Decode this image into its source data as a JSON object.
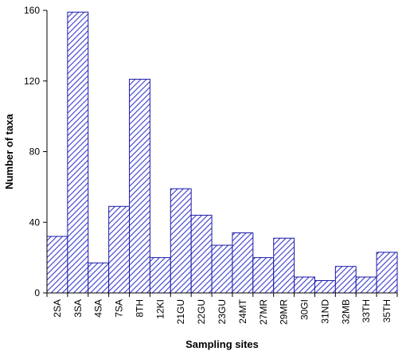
{
  "chart_data": {
    "type": "bar",
    "title": "",
    "xlabel": "Sampling sites",
    "ylabel": "Number of taxa",
    "ylim": [
      0,
      160
    ],
    "yticks": [
      0,
      40,
      80,
      120,
      160
    ],
    "grid": false,
    "legend": "none",
    "bar_fill": "hatched-diagonal",
    "colors": {
      "bar_stroke": "#1a1aa8",
      "bar_hatch": "#3a3ad0",
      "axis": "#000000"
    },
    "categories": [
      "2SA",
      "3SA",
      "4SA",
      "7SA",
      "8TH",
      "12KI",
      "21GU",
      "22GU",
      "23GU",
      "24MT",
      "27MR",
      "29MR",
      "30GI",
      "31ND",
      "32MB",
      "33TH",
      "35TH"
    ],
    "values": [
      32,
      159,
      17,
      49,
      121,
      20,
      59,
      44,
      27,
      34,
      20,
      31,
      9,
      7,
      15,
      9,
      23
    ]
  }
}
